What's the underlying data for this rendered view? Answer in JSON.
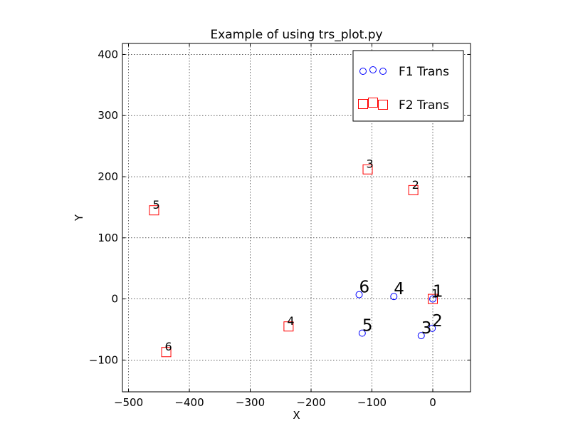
{
  "chart_data": {
    "type": "scatter",
    "title": "Example of using trs_plot.py",
    "xlabel": "X",
    "ylabel": "Y",
    "xlim": [
      -510,
      62
    ],
    "ylim": [
      -152,
      418
    ],
    "xticks": [
      -500,
      -400,
      -300,
      -200,
      -100,
      0
    ],
    "xtick_labels": [
      "−500",
      "−400",
      "−300",
      "−200",
      "−100",
      "0"
    ],
    "yticks": [
      -100,
      0,
      100,
      200,
      300,
      400
    ],
    "ytick_labels": [
      "−100",
      "0",
      "100",
      "200",
      "300",
      "400"
    ],
    "grid": true,
    "legend_position": "top-right",
    "series": [
      {
        "name": "F1 Trans",
        "marker": "circle",
        "color": "#0000ff",
        "label_size": "large",
        "points": [
          {
            "x": 0,
            "y": 0,
            "label": "1"
          },
          {
            "x": -1,
            "y": -48,
            "label": "2"
          },
          {
            "x": -19,
            "y": -60,
            "label": "3"
          },
          {
            "x": -64,
            "y": 4,
            "label": "4"
          },
          {
            "x": -116,
            "y": -56,
            "label": "5"
          },
          {
            "x": -121,
            "y": 7,
            "label": "6"
          }
        ]
      },
      {
        "name": "F2 Trans",
        "marker": "square",
        "color": "#ff0000",
        "label_size": "small",
        "points": [
          {
            "x": 0,
            "y": 0,
            "label": "1"
          },
          {
            "x": -32,
            "y": 178,
            "label": "2"
          },
          {
            "x": -107,
            "y": 212,
            "label": "3"
          },
          {
            "x": -237,
            "y": -45,
            "label": "4"
          },
          {
            "x": -458,
            "y": 145,
            "label": "5"
          },
          {
            "x": -438,
            "y": -87,
            "label": "6"
          }
        ]
      }
    ]
  }
}
